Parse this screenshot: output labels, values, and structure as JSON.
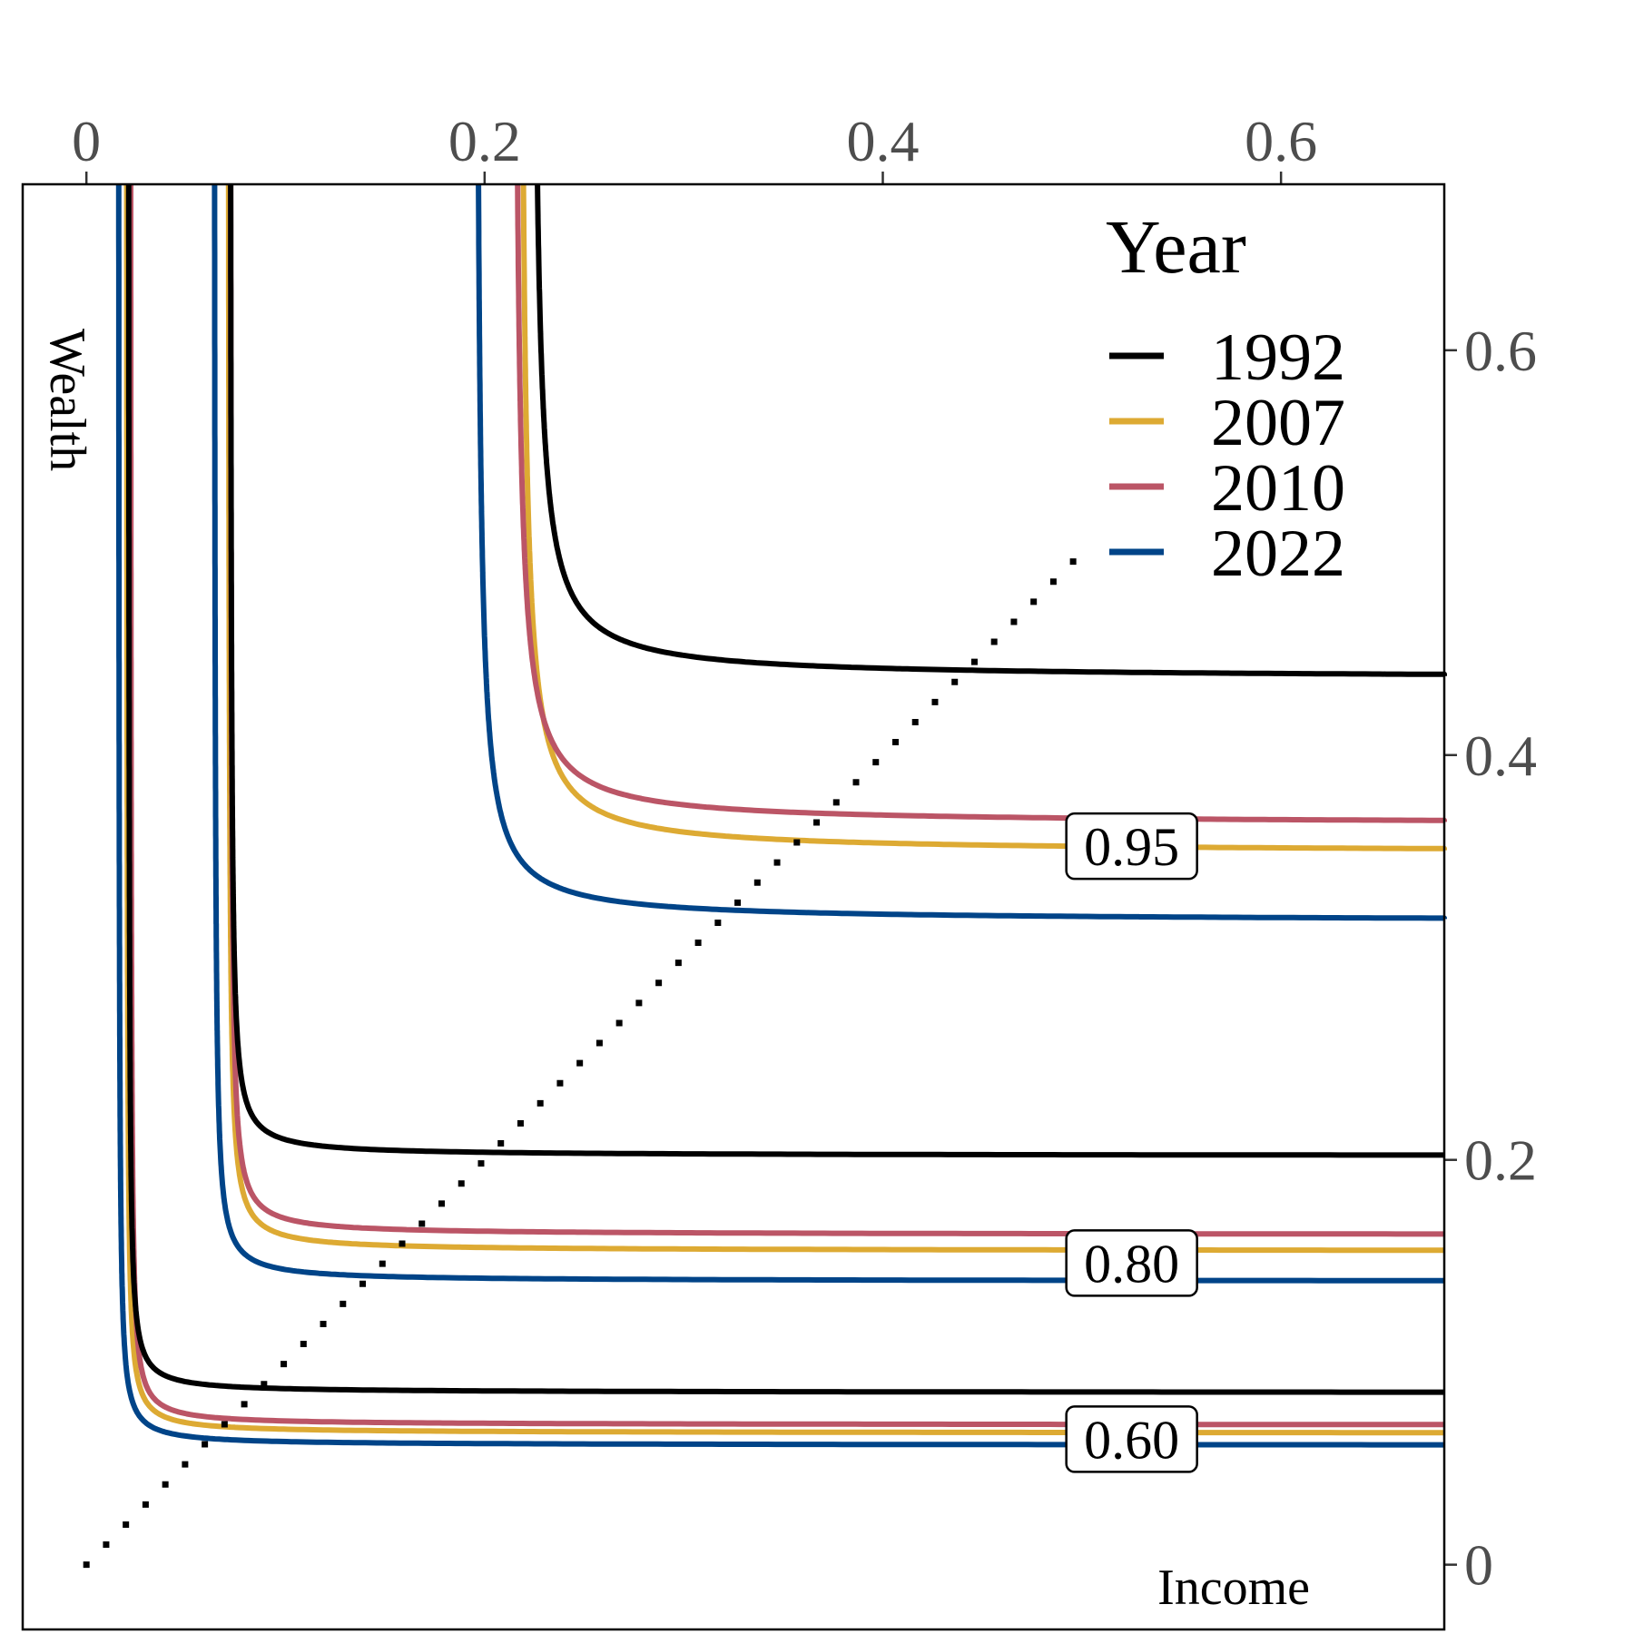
{
  "chart_data": {
    "type": "line",
    "xlabel": "Income",
    "ylabel": "Wealth",
    "xlim": [
      -0.032,
      0.682
    ],
    "ylim": [
      -0.032,
      0.682
    ],
    "x_ticks": [
      0,
      0.2,
      0.4,
      0.6
    ],
    "x_tick_labels": [
      "0",
      "0.2",
      "0.4",
      "0.6"
    ],
    "y_ticks": [
      0,
      0.2,
      0.4,
      0.6
    ],
    "y_tick_labels": [
      "0",
      "0.2",
      "0.4",
      "0.6"
    ],
    "x_axis_position": "top",
    "y_axis_position": "right",
    "grid": false,
    "legend": {
      "title": "Year",
      "position": "top-right",
      "entries": [
        {
          "label": "1992",
          "color": "#000000"
        },
        {
          "label": "2007",
          "color": "#DDAA33"
        },
        {
          "label": "2010",
          "color": "#BB5566"
        },
        {
          "label": "2022",
          "color": "#004488"
        }
      ]
    },
    "diagonal": {
      "style": "dotted",
      "x": [
        0,
        0.5
      ],
      "y": [
        0,
        0.5
      ]
    },
    "level_labels": [
      {
        "text": "0.95",
        "x": 0.525,
        "y": 0.355
      },
      {
        "text": "0.80",
        "x": 0.525,
        "y": 0.149
      },
      {
        "text": "0.60",
        "x": 0.525,
        "y": 0.062
      }
    ],
    "series": [
      {
        "name": "1992",
        "color": "#000000",
        "level": "0.95",
        "x_asym": 0.223,
        "y_asym": 0.438,
        "x_start": 0.223,
        "y_start": 0.682,
        "x_end": 0.682,
        "y_end": 0.438
      },
      {
        "name": "2007",
        "color": "#DDAA33",
        "level": "0.95",
        "x_asym": 0.217,
        "y_asym": 0.352,
        "x_start": 0.217,
        "y_start": 0.682,
        "x_end": 0.682,
        "y_end": 0.352
      },
      {
        "name": "2010",
        "color": "#BB5566",
        "level": "0.95",
        "x_asym": 0.214,
        "y_asym": 0.366,
        "x_start": 0.214,
        "y_start": 0.682,
        "x_end": 0.682,
        "y_end": 0.366
      },
      {
        "name": "2022",
        "color": "#004488",
        "level": "0.95",
        "x_asym": 0.195,
        "y_asym": 0.318,
        "x_start": 0.195,
        "y_start": 0.682,
        "x_end": 0.682,
        "y_end": 0.318
      },
      {
        "name": "1992",
        "color": "#000000",
        "level": "0.80",
        "x_asym": 0.072,
        "y_asym": 0.202,
        "x_start": 0.072,
        "y_start": 0.682,
        "x_end": 0.682,
        "y_end": 0.202
      },
      {
        "name": "2007",
        "color": "#DDAA33",
        "level": "0.80",
        "x_asym": 0.071,
        "y_asym": 0.155,
        "x_start": 0.071,
        "y_start": 0.682,
        "x_end": 0.682,
        "y_end": 0.155
      },
      {
        "name": "2010",
        "color": "#BB5566",
        "level": "0.80",
        "x_asym": 0.072,
        "y_asym": 0.163,
        "x_start": 0.072,
        "y_start": 0.682,
        "x_end": 0.682,
        "y_end": 0.163
      },
      {
        "name": "2022",
        "color": "#004488",
        "level": "0.80",
        "x_asym": 0.064,
        "y_asym": 0.14,
        "x_start": 0.064,
        "y_start": 0.682,
        "x_end": 0.682,
        "y_end": 0.14
      },
      {
        "name": "1992",
        "color": "#000000",
        "level": "0.60",
        "x_asym": 0.021,
        "y_asym": 0.085,
        "x_start": 0.021,
        "y_start": 0.682,
        "x_end": 0.682,
        "y_end": 0.085
      },
      {
        "name": "2007",
        "color": "#DDAA33",
        "level": "0.60",
        "x_asym": 0.02,
        "y_asym": 0.065,
        "x_start": 0.02,
        "y_start": 0.682,
        "x_end": 0.682,
        "y_end": 0.065
      },
      {
        "name": "2010",
        "color": "#BB5566",
        "level": "0.60",
        "x_asym": 0.022,
        "y_asym": 0.069,
        "x_start": 0.022,
        "y_start": 0.682,
        "x_end": 0.682,
        "y_end": 0.069
      },
      {
        "name": "2022",
        "color": "#004488",
        "level": "0.60",
        "x_asym": 0.016,
        "y_asym": 0.059,
        "x_start": 0.016,
        "y_start": 0.682,
        "x_end": 0.682,
        "y_end": 0.059
      }
    ]
  }
}
